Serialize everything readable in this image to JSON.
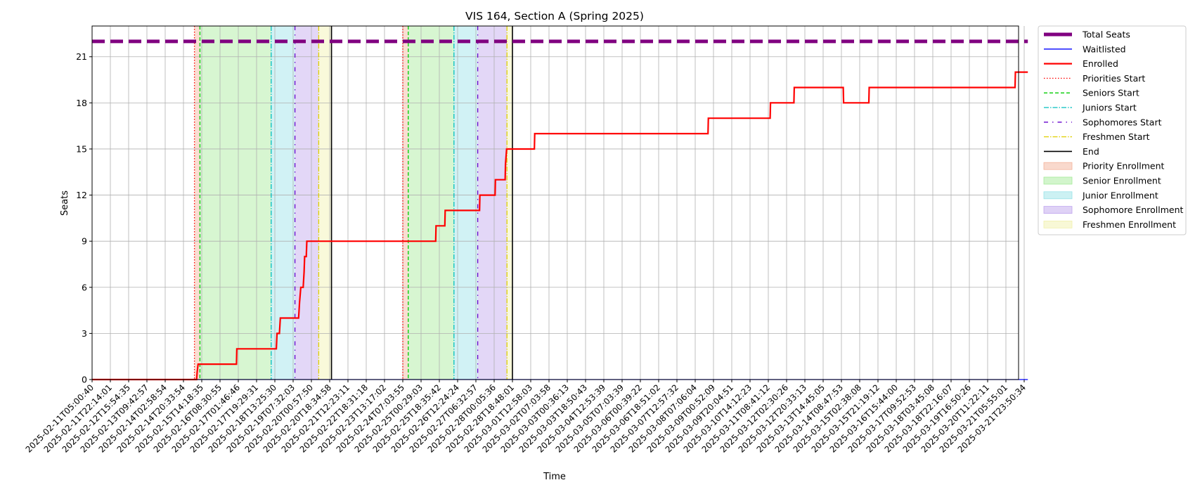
{
  "chart_data": {
    "type": "line",
    "title": "VIS 164, Section A (Spring 2025)",
    "xlabel": "Time",
    "ylabel": "Seats",
    "ylim": [
      0,
      23
    ],
    "y_ticks": [
      0,
      3,
      6,
      9,
      12,
      15,
      18,
      21
    ],
    "grid": true,
    "legend_placement": "outside-right",
    "x_ticks": [
      "2025-02-11T05:00:40",
      "2025-02-11T22:14:01",
      "2025-02-12T15:54:35",
      "2025-02-13T09:42:57",
      "2025-02-14T02:58:54",
      "2025-02-14T20:33:54",
      "2025-02-15T14:18:35",
      "2025-02-16T08:30:55",
      "2025-02-17T01:46:46",
      "2025-02-17T19:29:31",
      "2025-02-18T13:25:30",
      "2025-02-19T07:32:03",
      "2025-02-20T00:57:50",
      "2025-02-20T18:34:58",
      "2025-02-21T12:23:11",
      "2025-02-22T18:31:18",
      "2025-02-23T13:17:02",
      "2025-02-24T07:03:55",
      "2025-02-25T00:29:03",
      "2025-02-25T18:35:42",
      "2025-02-26T12:24:24",
      "2025-02-27T06:32:57",
      "2025-02-28T00:05:36",
      "2025-02-28T18:48:01",
      "2025-03-01T12:58:03",
      "2025-03-02T07:03:58",
      "2025-03-03T00:36:13",
      "2025-03-03T18:50:43",
      "2025-03-04T12:53:39",
      "2025-03-05T07:03:39",
      "2025-03-06T00:39:22",
      "2025-03-06T18:51:02",
      "2025-03-07T12:57:32",
      "2025-03-08T07:06:04",
      "2025-03-09T00:52:09",
      "2025-03-09T20:04:51",
      "2025-03-10T14:12:23",
      "2025-03-11T08:41:12",
      "2025-03-12T02:30:26",
      "2025-03-12T20:33:13",
      "2025-03-13T14:45:05",
      "2025-03-14T08:47:53",
      "2025-03-15T02:38:08",
      "2025-03-15T21:19:12",
      "2025-03-16T15:44:00",
      "2025-03-17T09:52:53",
      "2025-03-18T03:45:08",
      "2025-03-18T22:16:07",
      "2025-03-19T16:50:26",
      "2025-03-20T11:22:11",
      "2025-03-21T05:55:01",
      "2025-03-21T23:50:34"
    ],
    "x_index_range": [
      0,
      51.2
    ],
    "series": [
      {
        "name": "Total Seats",
        "color": "#800080",
        "style": "dashed-thick",
        "values": [
          [
            0,
            22
          ],
          [
            51.2,
            22
          ]
        ]
      },
      {
        "name": "Waitlisted",
        "color": "#0000ff",
        "style": "solid-thin",
        "values": [
          [
            0,
            0
          ],
          [
            51.2,
            0
          ]
        ]
      },
      {
        "name": "Enrolled",
        "color": "#ff0000",
        "style": "step",
        "values": [
          [
            0,
            0
          ],
          [
            5.72,
            0
          ],
          [
            5.75,
            0.5
          ],
          [
            5.8,
            1
          ],
          [
            7.9,
            1
          ],
          [
            7.92,
            2
          ],
          [
            10.08,
            2
          ],
          [
            10.12,
            3
          ],
          [
            10.25,
            3
          ],
          [
            10.3,
            4
          ],
          [
            11.3,
            4
          ],
          [
            11.35,
            5
          ],
          [
            11.42,
            6
          ],
          [
            11.55,
            6
          ],
          [
            11.6,
            7
          ],
          [
            11.63,
            8
          ],
          [
            11.72,
            8
          ],
          [
            11.75,
            9
          ],
          [
            18.8,
            9
          ],
          [
            18.82,
            10
          ],
          [
            19.3,
            10
          ],
          [
            19.32,
            11
          ],
          [
            21.2,
            11
          ],
          [
            21.22,
            12
          ],
          [
            22.05,
            12
          ],
          [
            22.07,
            13
          ],
          [
            22.6,
            13
          ],
          [
            22.62,
            14
          ],
          [
            22.68,
            15
          ],
          [
            24.2,
            15
          ],
          [
            24.22,
            16
          ],
          [
            33.7,
            16
          ],
          [
            33.72,
            17
          ],
          [
            37.1,
            17
          ],
          [
            37.12,
            18
          ],
          [
            38.4,
            18
          ],
          [
            38.42,
            19
          ],
          [
            41.1,
            19
          ],
          [
            41.12,
            18
          ],
          [
            42.5,
            18
          ],
          [
            42.52,
            19
          ],
          [
            50.5,
            19
          ],
          [
            50.52,
            20
          ],
          [
            51.2,
            20
          ]
        ]
      }
    ],
    "markers": [
      {
        "name": "Priorities Start",
        "color": "#ff0000",
        "style": "dotted",
        "x": [
          5.6,
          17.0
        ]
      },
      {
        "name": "Seniors Start",
        "color": "#00cc00",
        "style": "dashed",
        "x": [
          5.9,
          17.3
        ]
      },
      {
        "name": "Juniors Start",
        "color": "#00bfbf",
        "style": "dashdot",
        "x": [
          9.8,
          19.8
        ]
      },
      {
        "name": "Sophomores Start",
        "color": "#6600cc",
        "style": "dashdot-dense",
        "x": [
          11.1,
          21.1
        ]
      },
      {
        "name": "Freshmen Start",
        "color": "#e0d000",
        "style": "dashdot",
        "x": [
          12.4,
          22.7
        ]
      },
      {
        "name": "End",
        "color": "#000000",
        "style": "solid",
        "x": [
          13.1,
          23.0
        ]
      }
    ],
    "bands": [
      {
        "name": "Priority Enrollment",
        "color": "#f4b49c",
        "ranges": [
          [
            5.6,
            5.9
          ],
          [
            17.0,
            17.3
          ]
        ]
      },
      {
        "name": "Senior Enrollment",
        "color": "#a6eb9a",
        "ranges": [
          [
            5.9,
            9.8
          ],
          [
            17.3,
            19.8
          ]
        ]
      },
      {
        "name": "Junior Enrollment",
        "color": "#9ae3e8",
        "ranges": [
          [
            9.8,
            11.1
          ],
          [
            19.8,
            21.1
          ]
        ]
      },
      {
        "name": "Sophomore Enrollment",
        "color": "#c0a6ee",
        "ranges": [
          [
            11.1,
            12.4
          ],
          [
            21.1,
            22.7
          ]
        ]
      },
      {
        "name": "Freshmen Enrollment",
        "color": "#f1f1ad",
        "ranges": [
          [
            12.4,
            13.1
          ],
          [
            22.7,
            23.0
          ]
        ]
      }
    ],
    "legend": [
      {
        "label": "Total Seats",
        "kind": "line",
        "color": "#800080",
        "dash": "",
        "width": 5
      },
      {
        "label": "Waitlisted",
        "kind": "line",
        "color": "#0000ff",
        "dash": "",
        "width": 1.3
      },
      {
        "label": "Enrolled",
        "kind": "line",
        "color": "#ff0000",
        "dash": "",
        "width": 2.2
      },
      {
        "label": "Priorities Start",
        "kind": "line",
        "color": "#ff0000",
        "dash": "1.5,2.5",
        "width": 1.3
      },
      {
        "label": "Seniors Start",
        "kind": "line",
        "color": "#00cc00",
        "dash": "5,3",
        "width": 1.3
      },
      {
        "label": "Juniors Start",
        "kind": "line",
        "color": "#00bfbf",
        "dash": "7,2,1.5,2",
        "width": 1.3
      },
      {
        "label": "Sophomores Start",
        "kind": "line",
        "color": "#6600cc",
        "dash": "6,6,1.5,6",
        "width": 1.3
      },
      {
        "label": "Freshmen Start",
        "kind": "line",
        "color": "#e0d000",
        "dash": "7,2,1.5,2",
        "width": 1.3
      },
      {
        "label": "End",
        "kind": "line",
        "color": "#000000",
        "dash": "",
        "width": 1.6
      },
      {
        "label": "Priority Enrollment",
        "kind": "patch",
        "color": "#f4b49c"
      },
      {
        "label": "Senior Enrollment",
        "kind": "patch",
        "color": "#a6eb9a"
      },
      {
        "label": "Junior Enrollment",
        "kind": "patch",
        "color": "#9ae3e8"
      },
      {
        "label": "Sophomore Enrollment",
        "kind": "patch",
        "color": "#c0a6ee"
      },
      {
        "label": "Freshmen Enrollment",
        "kind": "patch",
        "color": "#f1f1ad"
      }
    ]
  }
}
